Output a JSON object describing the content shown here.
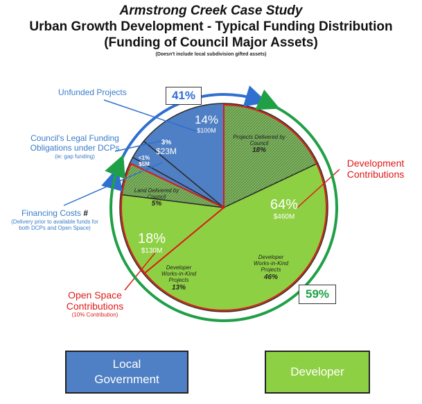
{
  "header": {
    "title": "Armstrong Creek Case Study",
    "subtitle_line1": "Urban Growth Development - Typical Funding Distribution",
    "subtitle_line2": "(Funding of Council Major Assets)",
    "note": "(Doesn't include local subdivision gifted assets)"
  },
  "colors": {
    "council_blue": "#4f7fc4",
    "developer_green": "#8ed043",
    "green_hatched": "#77a85a",
    "red_line": "#e01818",
    "arrow_blue": "#2f6fd0",
    "arrow_green": "#1fa046"
  },
  "chart_data": {
    "type": "pie",
    "slices": [
      {
        "label": "Projects Delivered by Council",
        "percent": 18,
        "group": "Developer",
        "style": "hatched"
      },
      {
        "label": "Developer Works-in-Kind Projects",
        "percent": 46,
        "group": "Developer",
        "style": "solid"
      },
      {
        "label": "Developer Works-in-Kind Projects",
        "percent": 13,
        "group": "Developer",
        "style": "solid"
      },
      {
        "label": "Land Delivered by Council",
        "percent": 5,
        "group": "Developer",
        "style": "hatched"
      },
      {
        "label": "Financing Costs",
        "percent": 1,
        "group": "Local Government",
        "style": "solid"
      },
      {
        "label": "Council's Legal Funding Obligations under DCPs",
        "percent": 3,
        "group": "Local Government",
        "style": "solid"
      },
      {
        "label": "Unfunded Projects",
        "percent": 14,
        "group": "Local Government",
        "style": "solid"
      }
    ],
    "slice_texts": {
      "projects_delivered": {
        "line1": "Projects Delivered by",
        "line2": "Council",
        "pct": "18%"
      },
      "works_in_kind_large": {
        "line1": "Developer",
        "line2": "Works-in-Kind",
        "line3": "Projects",
        "pct": "46%"
      },
      "works_in_kind_small": {
        "line1": "Developer",
        "line2": "Works-in-Kind",
        "line3": "Projects",
        "pct": "13%"
      },
      "land_delivered": {
        "line1": "Land Delivered by",
        "line2": "Council",
        "pct": "5%"
      },
      "financing": {
        "pct": "<1%",
        "amount": "$5M"
      },
      "legal": {
        "pct": "3%",
        "amount": "$23M"
      },
      "unfunded": {
        "pct": "14%",
        "amount": "$100M"
      },
      "dev_total": {
        "pct": "64%",
        "amount": "$460M"
      },
      "open_total": {
        "pct": "18%",
        "amount": "$130M"
      }
    },
    "group_totals": {
      "local_government": "41%",
      "developer": "59%"
    }
  },
  "annotations": {
    "unfunded": "Unfunded Projects",
    "legal_line1": "Council's Legal Funding",
    "legal_line2": "Obligations under DCPs",
    "legal_note": "(ie: gap funding)",
    "financing_title": "Financing Costs",
    "financing_mark": "#",
    "financing_note1": "(Delivery prior to available funds for",
    "financing_note2": "both DCPs and Open Space)",
    "dev_contrib_line1": "Development",
    "dev_contrib_line2": "Contributions",
    "open_space_line1": "Open Space",
    "open_space_line2": "Contributions",
    "open_space_note": "(10% Contribution)"
  },
  "legend": {
    "local_line1": "Local",
    "local_line2": "Government",
    "developer": "Developer"
  }
}
